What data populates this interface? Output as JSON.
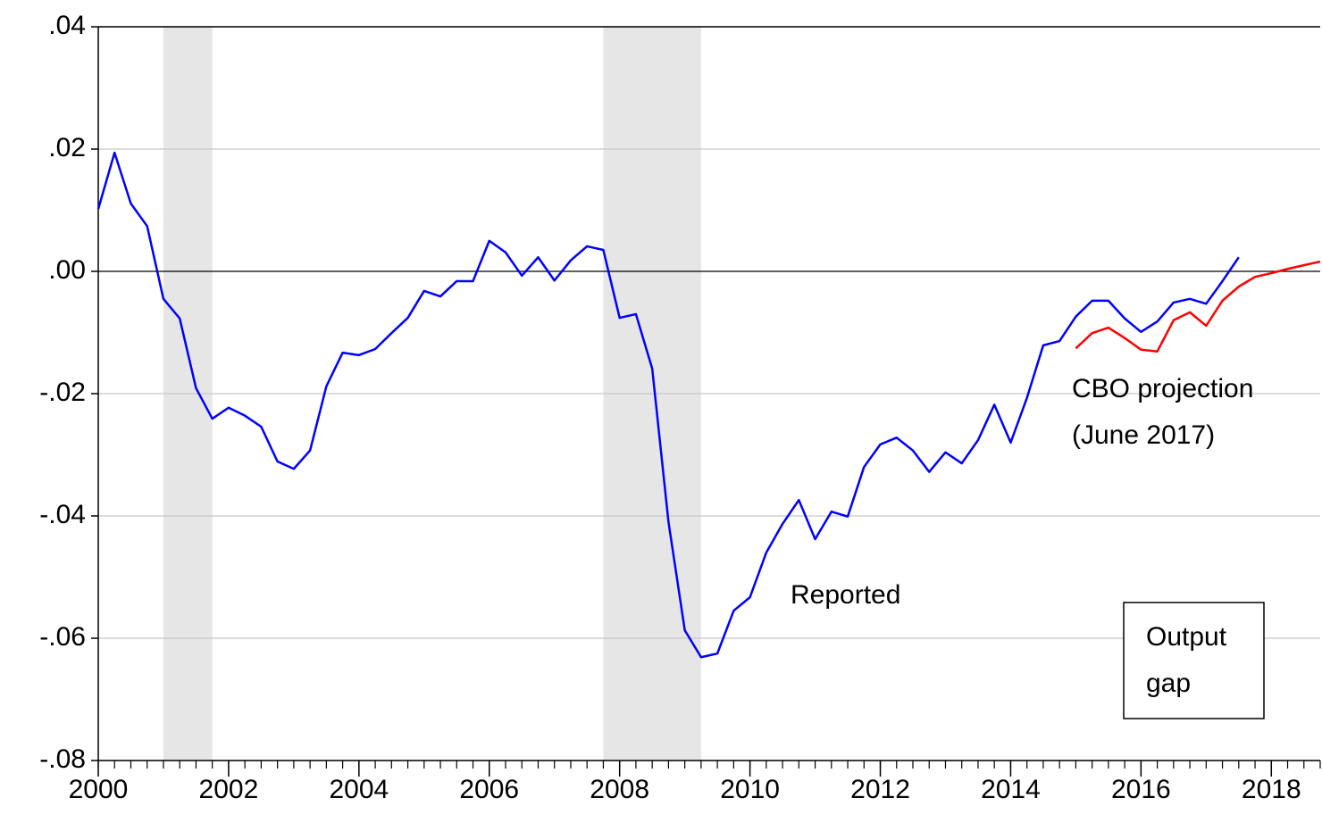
{
  "chart_data": {
    "type": "line",
    "x": [
      2000,
      2000.25,
      2000.5,
      2000.75,
      2001,
      2001.25,
      2001.5,
      2001.75,
      2002,
      2002.25,
      2002.5,
      2002.75,
      2003,
      2003.25,
      2003.5,
      2003.75,
      2004,
      2004.25,
      2004.5,
      2004.75,
      2005,
      2005.25,
      2005.5,
      2005.75,
      2006,
      2006.25,
      2006.5,
      2006.75,
      2007,
      2007.25,
      2007.5,
      2007.75,
      2008,
      2008.25,
      2008.5,
      2008.75,
      2009,
      2009.25,
      2009.5,
      2009.75,
      2010,
      2010.25,
      2010.5,
      2010.75,
      2011,
      2011.25,
      2011.5,
      2011.75,
      2012,
      2012.25,
      2012.5,
      2012.75,
      2013,
      2013.25,
      2013.5,
      2013.75,
      2014,
      2014.25,
      2014.5,
      2014.75,
      2015,
      2015.25,
      2015.5,
      2015.75,
      2016,
      2016.25,
      2016.5,
      2016.75,
      2017,
      2017.25,
      2017.5,
      2017.75,
      2018,
      2018.25,
      2018.5,
      2018.75
    ],
    "series": [
      {
        "name": "Reported",
        "color": "#0000ff",
        "values": [
          0.0102,
          0.0194,
          0.0111,
          0.0074,
          -0.0045,
          -0.0077,
          -0.0191,
          -0.0241,
          -0.0223,
          -0.0236,
          -0.0254,
          -0.0311,
          -0.0323,
          -0.0293,
          -0.0188,
          -0.0133,
          -0.0137,
          -0.0127,
          -0.0101,
          -0.0076,
          -0.0032,
          -0.0041,
          -0.0016,
          -0.0016,
          0.005,
          0.0031,
          -0.0007,
          0.0023,
          -0.0015,
          0.0018,
          0.0041,
          0.0035,
          -0.0076,
          -0.007,
          -0.0159,
          -0.041,
          -0.0587,
          -0.0631,
          -0.0625,
          -0.0555,
          -0.0533,
          -0.046,
          -0.0413,
          -0.0374,
          -0.0438,
          -0.0393,
          -0.0401,
          -0.032,
          -0.0283,
          -0.0272,
          -0.0293,
          -0.0328,
          -0.0296,
          -0.0314,
          -0.0276,
          -0.0218,
          -0.028,
          -0.0207,
          -0.0121,
          -0.0114,
          -0.0074,
          -0.0048,
          -0.0048,
          -0.0077,
          -0.0099,
          -0.0082,
          -0.0051,
          -0.0045,
          -0.0053,
          -0.0016,
          0.0023,
          null,
          null,
          null,
          null,
          null
        ]
      },
      {
        "name": "CBO projection",
        "color": "#ff0000",
        "values": [
          null,
          null,
          null,
          null,
          null,
          null,
          null,
          null,
          null,
          null,
          null,
          null,
          null,
          null,
          null,
          null,
          null,
          null,
          null,
          null,
          null,
          null,
          null,
          null,
          null,
          null,
          null,
          null,
          null,
          null,
          null,
          null,
          null,
          null,
          null,
          null,
          null,
          null,
          null,
          null,
          null,
          null,
          null,
          null,
          null,
          null,
          null,
          null,
          null,
          null,
          null,
          null,
          null,
          null,
          null,
          null,
          null,
          null,
          null,
          null,
          -0.0126,
          -0.0101,
          -0.0092,
          -0.0109,
          -0.0128,
          -0.0131,
          -0.008,
          -0.0067,
          -0.0089,
          -0.0048,
          -0.0025,
          -0.0009,
          -0.0003,
          0.0004,
          0.001,
          0.0016
        ]
      }
    ],
    "annotations": [
      "(June 2017)",
      "Output",
      "gap"
    ],
    "shaded_periods": [
      [
        2001,
        2001.75
      ],
      [
        2007.75,
        2009.25
      ]
    ],
    "xlim": [
      2000,
      2018.75
    ],
    "xticks": [
      2000,
      2002,
      2004,
      2006,
      2008,
      2010,
      2012,
      2014,
      2016,
      2018
    ],
    "ylim": [
      -0.08,
      0.04
    ],
    "yticks": [
      {
        "value": -0.08,
        "label": "-.08"
      },
      {
        "value": -0.06,
        "label": "-.06"
      },
      {
        "value": -0.04,
        "label": "-.04"
      },
      {
        "value": -0.02,
        "label": "-.02"
      },
      {
        "value": 0,
        "label": ".00"
      },
      {
        "value": 0.02,
        "label": ".02"
      },
      {
        "value": 0.04,
        "label": ".04"
      }
    ],
    "grid": true
  }
}
